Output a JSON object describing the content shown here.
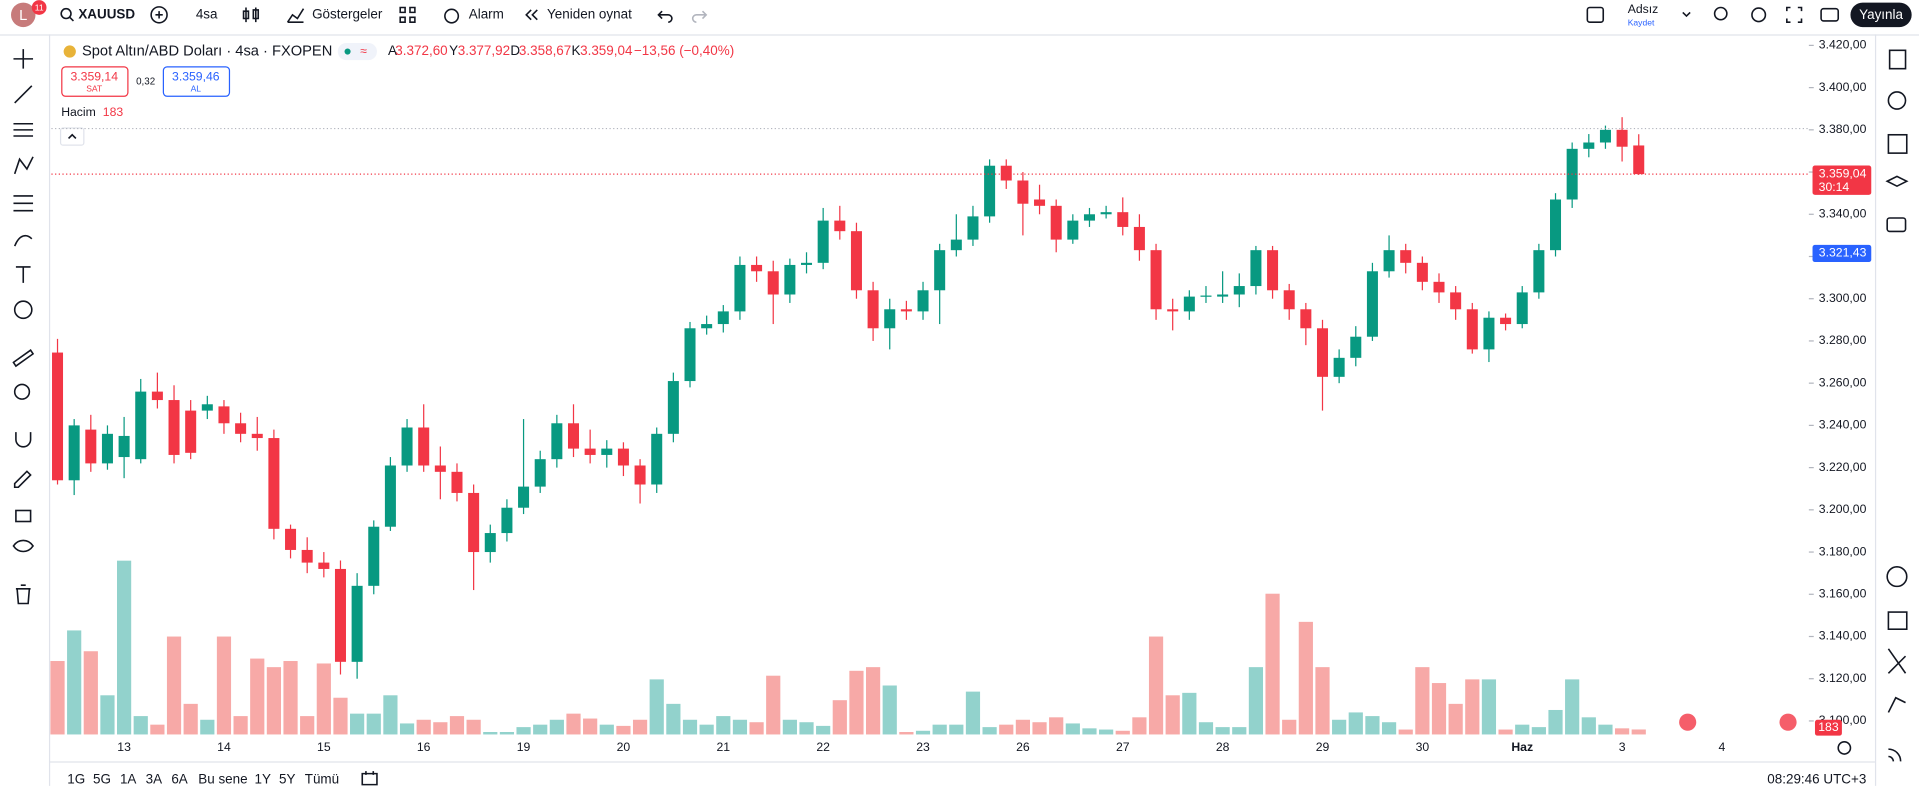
{
  "topbar": {
    "avatar": "L",
    "badge": "11",
    "symbol": "XAUUSD",
    "interval": "4sa",
    "indicators": "Göstergeler",
    "alarm": "Alarm",
    "replay": "Yeniden oynat",
    "layout_name": "Adsız",
    "save": "Kaydet",
    "publish": "Yayınla"
  },
  "legend": {
    "title": "Spot Altın/ABD Doları · 4sa · FXOPEN",
    "open": {
      "key": "A",
      "value": "3.372,60"
    },
    "high": {
      "key": "Y",
      "value": "3.377,92"
    },
    "low": {
      "key": "D",
      "value": "3.358,67"
    },
    "close": {
      "key": "K",
      "value": "3.359,04"
    },
    "change": "−13,56 (−0,40%)",
    "sell": {
      "price": "3.359,14",
      "label": "SAT"
    },
    "spread": "0,32",
    "buy": {
      "price": "3.359,46",
      "label": "AL"
    },
    "volume_label": "Hacim",
    "volume_value": "183"
  },
  "range_buttons": [
    "1G",
    "5G",
    "1A",
    "3A",
    "6A",
    "Bu sene",
    "1Y",
    "5Y",
    "Tümü"
  ],
  "clock": "08:29:46 UTC+3",
  "chart_data": {
    "type": "candlestick",
    "up_color": "#089981",
    "down_color": "#f23645",
    "up_volume_color": "#92d2cc",
    "down_volume_color": "#f7a9a7",
    "grid": false,
    "categories": [
      null,
      null,
      null,
      null,
      "13",
      null,
      null,
      null,
      null,
      null,
      "14",
      null,
      null,
      null,
      null,
      null,
      "15",
      null,
      null,
      null,
      null,
      null,
      "16",
      null,
      null,
      null,
      null,
      null,
      "19",
      null,
      null,
      null,
      null,
      null,
      "20",
      null,
      null,
      null,
      null,
      null,
      "21",
      null,
      null,
      null,
      null,
      null,
      "22",
      null,
      null,
      null,
      null,
      null,
      "23",
      null,
      null,
      null,
      null,
      null,
      "26",
      null,
      null,
      null,
      null,
      null,
      "27",
      null,
      null,
      null,
      null,
      null,
      "28",
      null,
      null,
      null,
      null,
      null,
      "29",
      null,
      null,
      null,
      null,
      null,
      "30",
      null,
      null,
      null,
      null,
      null,
      "Haz",
      null,
      null,
      null,
      null,
      null,
      "3",
      null,
      null,
      null,
      null,
      null,
      "4",
      null
    ],
    "open": [
      3274.5,
      3214,
      3238,
      3222,
      3225,
      3224,
      3256,
      3252,
      3247,
      3247,
      3249,
      3241,
      3236,
      3234,
      3191,
      3181,
      3175,
      3172,
      3128,
      3164,
      3192,
      3221,
      3239,
      3221,
      3218,
      3208,
      3180,
      3189,
      3201,
      3211,
      3224,
      3241,
      3229,
      3226,
      3229,
      3221,
      3212,
      3236,
      3261,
      3286,
      3288,
      3294,
      3316,
      3313,
      3302,
      3316,
      3317,
      3337,
      3332,
      3304,
      3286,
      3295,
      3294,
      3304,
      3323,
      3328,
      3339,
      3363,
      3356,
      3347,
      3344,
      3328,
      3337,
      3340,
      3341,
      3334,
      3323,
      3295,
      3294,
      3301,
      3301,
      3302,
      3306,
      3323,
      3304,
      3295,
      3286,
      3263,
      3272,
      3282,
      3313,
      3323,
      3317,
      3308,
      3303,
      3295,
      3276,
      3291,
      3288,
      3303,
      3323,
      3347,
      3371,
      3374,
      3380,
      3372.6,
      null,
      null,
      null,
      null,
      null,
      null
    ],
    "high": [
      3281,
      3243,
      3245,
      3240,
      3244,
      3262,
      3265,
      3259,
      3252,
      3254,
      3252,
      3246,
      3244,
      3238,
      3193,
      3187,
      3180,
      3176,
      3170,
      3195,
      3225,
      3243,
      3250,
      3230,
      3222,
      3212,
      3193,
      3205,
      3243,
      3228,
      3245,
      3250,
      3238,
      3233,
      3232,
      3224,
      3239,
      3265,
      3289,
      3292,
      3297,
      3320,
      3320,
      3318,
      3319,
      3322,
      3343,
      3344,
      3336,
      3308,
      3300,
      3299,
      3308,
      3326,
      3340,
      3344,
      3366,
      3366,
      3360,
      3354,
      3347,
      3340,
      3343,
      3344,
      3348,
      3340,
      3326,
      3300,
      3304,
      3306,
      3313,
      3312,
      3325,
      3325,
      3307,
      3298,
      3290,
      3276,
      3287,
      3317,
      3330,
      3326,
      3320,
      3312,
      3306,
      3298,
      3294,
      3293,
      3306,
      3326,
      3350,
      3374,
      3378,
      3382,
      3386,
      3377.92,
      null,
      null,
      null,
      null,
      null,
      null
    ],
    "low": [
      3212,
      3207,
      3218,
      3219,
      3215,
      3222,
      3248,
      3222,
      3224,
      3243,
      3236,
      3232,
      3228,
      3186,
      3177,
      3170,
      3168,
      3122,
      3120,
      3160,
      3190,
      3218,
      3218,
      3205,
      3204,
      3162,
      3175,
      3185,
      3198,
      3208,
      3220,
      3225,
      3222,
      3220,
      3216,
      3203,
      3208,
      3232,
      3258,
      3283,
      3284,
      3290,
      3308,
      3288,
      3298,
      3312,
      3314,
      3328,
      3300,
      3280,
      3276,
      3290,
      3290,
      3288,
      3320,
      3325,
      3336,
      3352,
      3330,
      3340,
      3322,
      3326,
      3334,
      3338,
      3330,
      3318,
      3290,
      3285,
      3290,
      3298,
      3298,
      3296,
      3302,
      3300,
      3290,
      3278,
      3247,
      3260,
      3268,
      3280,
      3310,
      3312,
      3304,
      3298,
      3290,
      3274,
      3270,
      3285,
      3286,
      3300,
      3320,
      3343,
      3367,
      3371,
      3365,
      3358.67,
      null,
      null,
      null,
      null,
      null,
      null
    ],
    "close": [
      3214,
      3240,
      3222,
      3236,
      3235,
      3256,
      3252,
      3226,
      3227,
      3250,
      3241,
      3236,
      3234,
      3191,
      3181,
      3175,
      3172,
      3128,
      3164,
      3192,
      3221,
      3239,
      3221,
      3218,
      3208,
      3180,
      3189,
      3201,
      3211,
      3224,
      3241,
      3229,
      3226,
      3229,
      3221,
      3212,
      3236,
      3261,
      3286,
      3288,
      3294,
      3316,
      3313,
      3302,
      3316,
      3317,
      3337,
      3332,
      3304,
      3286,
      3295,
      3294,
      3304,
      3323,
      3328,
      3339,
      3363,
      3356,
      3345,
      3344,
      3328,
      3337,
      3340,
      3341,
      3334,
      3323,
      3295,
      3294,
      3301,
      3301.5,
      3302,
      3306,
      3323,
      3304,
      3295,
      3286,
      3263,
      3272,
      3282,
      3313,
      3323,
      3317,
      3308,
      3303,
      3295,
      3276,
      3291,
      3288,
      3303,
      3323,
      3347,
      3371,
      3374,
      3380,
      3372,
      3359.04,
      null,
      null,
      null,
      null,
      null,
      null
    ],
    "volume": [
      2700,
      3825,
      3060,
      1440,
      6390,
      675,
      360,
      3600,
      1125,
      540,
      3600,
      675,
      2790,
      2475,
      2700,
      675,
      2610,
      1350,
      765,
      765,
      1440,
      405,
      540,
      450,
      675,
      540,
      90,
      90,
      270,
      360,
      540,
      765,
      585,
      360,
      315,
      540,
      2025,
      1125,
      540,
      360,
      675,
      540,
      450,
      2160,
      540,
      450,
      315,
      1260,
      2340,
      2475,
      1800,
      90,
      135,
      360,
      360,
      1575,
      270,
      360,
      540,
      450,
      630,
      405,
      225,
      180,
      135,
      630,
      3600,
      1440,
      1530,
      450,
      270,
      270,
      2475,
      5175,
      540,
      4140,
      2475,
      540,
      810,
      675,
      450,
      180,
      2475,
      1890,
      1125,
      2025,
      2025,
      180,
      360,
      270,
      900,
      2025,
      630,
      360,
      225,
      183,
      null,
      null,
      null,
      null,
      null,
      null
    ],
    "ylim": [
      3093.6,
      3425.2
    ],
    "yticks": [
      {
        "value": 3100,
        "label": "3.100,00"
      },
      {
        "value": 3120,
        "label": "3.120,00"
      },
      {
        "value": 3140,
        "label": "3.140,00"
      },
      {
        "value": 3160,
        "label": "3.160,00"
      },
      {
        "value": 3180,
        "label": "3.180,00"
      },
      {
        "value": 3200,
        "label": "3.200,00"
      },
      {
        "value": 3220,
        "label": "3.220,00"
      },
      {
        "value": 3240,
        "label": "3.240,00"
      },
      {
        "value": 3260,
        "label": "3.260,00"
      },
      {
        "value": 3280,
        "label": "3.280,00"
      },
      {
        "value": 3300,
        "label": "3.300,00"
      },
      {
        "value": 3320,
        "label": "3.320,00"
      },
      {
        "value": 3340,
        "label": "3.340,00"
      },
      {
        "value": 3360,
        "label": "3.360,00"
      },
      {
        "value": 3380,
        "label": "3.380,00"
      },
      {
        "value": 3400,
        "label": "3.400,00"
      },
      {
        "value": 3420,
        "label": "3.420,00"
      }
    ],
    "last_price": {
      "value": 3359.04,
      "label": "3.359,04",
      "countdown": "30:14"
    },
    "marker_price": {
      "value": 3321.43,
      "label": "3.321,43"
    },
    "high_line": 3380.6,
    "volume_axis_label": "183"
  }
}
